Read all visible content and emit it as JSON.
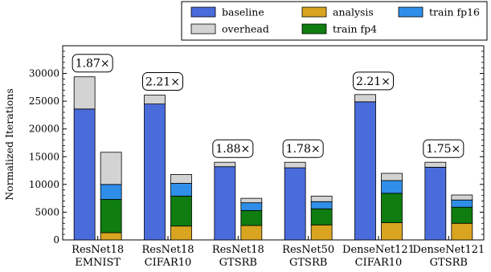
{
  "chart_data": {
    "type": "bar",
    "stacked": true,
    "ylabel": "Normalized Iterations",
    "ylim": [
      0,
      35000
    ],
    "yticks": [
      0,
      5000,
      10000,
      15000,
      20000,
      25000,
      30000
    ],
    "grid": false,
    "legend_position": "top-right",
    "legend": [
      {
        "key": "baseline",
        "label": "baseline",
        "color": "#4a6cdb"
      },
      {
        "key": "overhead",
        "label": "overhead",
        "color": "#d3d3d3"
      },
      {
        "key": "analysis",
        "label": "analysis",
        "color": "#d9a520"
      },
      {
        "key": "train_fp4",
        "label": "train fp4",
        "color": "#0f7d0f"
      },
      {
        "key": "train_fp16",
        "label": "train fp16",
        "color": "#2f8fe8"
      }
    ],
    "categories": [
      {
        "line1": "ResNet18",
        "line2": "EMNIST",
        "ratio": "1.87×",
        "baseline": {
          "baseline": 23600,
          "overhead": 5800
        },
        "ours": {
          "analysis": 1300,
          "train_fp4": 6000,
          "train_fp16": 2700,
          "overhead": 5800
        }
      },
      {
        "line1": "ResNet18",
        "line2": "CIFAR10",
        "ratio": "2.21×",
        "baseline": {
          "baseline": 24500,
          "overhead": 1600
        },
        "ours": {
          "analysis": 2500,
          "train_fp4": 5400,
          "train_fp16": 2300,
          "overhead": 1600
        }
      },
      {
        "line1": "ResNet18",
        "line2": "GTSRB",
        "ratio": "1.88×",
        "baseline": {
          "baseline": 13200,
          "overhead": 800
        },
        "ours": {
          "analysis": 2600,
          "train_fp4": 2700,
          "train_fp16": 1400,
          "overhead": 800
        }
      },
      {
        "line1": "ResNet50",
        "line2": "GTSRB",
        "ratio": "1.78×",
        "baseline": {
          "baseline": 13000,
          "overhead": 1000
        },
        "ours": {
          "analysis": 2700,
          "train_fp4": 2900,
          "train_fp16": 1300,
          "overhead": 1000
        }
      },
      {
        "line1": "DenseNet121",
        "line2": "CIFAR10",
        "ratio": "2.21×",
        "baseline": {
          "baseline": 24900,
          "overhead": 1300
        },
        "ours": {
          "analysis": 3100,
          "train_fp4": 5300,
          "train_fp16": 2300,
          "overhead": 1300
        }
      },
      {
        "line1": "DenseNet121",
        "line2": "GTSRB",
        "ratio": "1.75×",
        "baseline": {
          "baseline": 13100,
          "overhead": 900
        },
        "ours": {
          "analysis": 3000,
          "train_fp4": 2900,
          "train_fp16": 1300,
          "overhead": 900
        }
      }
    ]
  }
}
